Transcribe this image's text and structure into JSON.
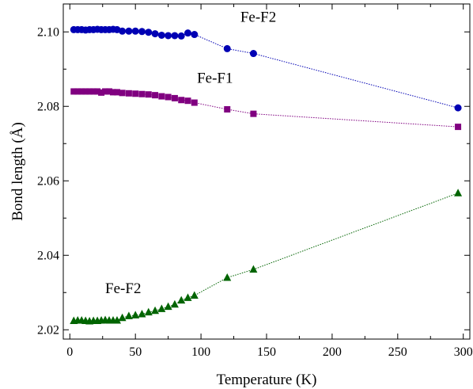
{
  "chart_data": {
    "type": "scatter",
    "xlabel": "Temperature (K)",
    "ylabel": "Bond length (Å)",
    "xlim": [
      -5,
      305
    ],
    "ylim": [
      2.0175,
      2.1075
    ],
    "xticks": [
      0,
      50,
      100,
      150,
      200,
      250,
      300
    ],
    "xtick_labels": [
      "0",
      "50",
      "100",
      "150",
      "200",
      "250",
      "300"
    ],
    "yticks": [
      2.02,
      2.04,
      2.06,
      2.08,
      2.1
    ],
    "ytick_labels": [
      "2.02",
      "2.04",
      "2.06",
      "2.08",
      "2.10"
    ],
    "grid": false,
    "legend": "none",
    "series": [
      {
        "name": "Fe-F2",
        "color": "#0000b4",
        "marker": "circle",
        "line": "dotted",
        "x": [
          3,
          6,
          9,
          12,
          15,
          18,
          21,
          24,
          27,
          30,
          33,
          36,
          40,
          45,
          50,
          55,
          60,
          65,
          70,
          75,
          80,
          85,
          90,
          95,
          120,
          140,
          296
        ],
        "y": [
          2.1006,
          2.1006,
          2.1006,
          2.1005,
          2.1006,
          2.1006,
          2.1007,
          2.1006,
          2.1006,
          2.1006,
          2.1007,
          2.1006,
          2.1002,
          2.1002,
          2.1002,
          2.1001,
          2.0999,
          2.0995,
          2.0991,
          2.099,
          2.099,
          2.0989,
          2.0997,
          2.0993,
          2.0955,
          2.0942,
          2.0796
        ]
      },
      {
        "name": "Fe-F1",
        "color": "#800080",
        "marker": "square",
        "line": "dotted",
        "x": [
          3,
          6,
          9,
          12,
          15,
          18,
          21,
          24,
          27,
          30,
          33,
          36,
          40,
          45,
          50,
          55,
          60,
          65,
          70,
          75,
          80,
          85,
          90,
          95,
          120,
          140,
          296
        ],
        "y": [
          2.084,
          2.084,
          2.084,
          2.084,
          2.084,
          2.084,
          2.084,
          2.0837,
          2.084,
          2.084,
          2.0838,
          2.0838,
          2.0836,
          2.0835,
          2.0834,
          2.0833,
          2.0832,
          2.083,
          2.0827,
          2.0825,
          2.0822,
          2.0817,
          2.0815,
          2.081,
          2.0792,
          2.078,
          2.0745
        ]
      },
      {
        "name": "Fe-F2",
        "color": "#006400",
        "marker": "triangle",
        "line": "dotted",
        "x": [
          3,
          6,
          9,
          12,
          15,
          18,
          21,
          24,
          27,
          30,
          33,
          36,
          40,
          45,
          50,
          55,
          60,
          65,
          70,
          75,
          80,
          85,
          90,
          95,
          120,
          140,
          296
        ],
        "y": [
          2.0224,
          2.0225,
          2.0225,
          2.0224,
          2.0223,
          2.0224,
          2.0224,
          2.0225,
          2.0226,
          2.0225,
          2.0225,
          2.0225,
          2.0232,
          2.0237,
          2.0239,
          2.0242,
          2.0247,
          2.0251,
          2.0256,
          2.0262,
          2.0268,
          2.0279,
          2.0286,
          2.0292,
          2.034,
          2.0362,
          2.0567
        ]
      }
    ],
    "annotations": [
      {
        "text": "Fe-F2",
        "x": 130,
        "y": 2.1027
      },
      {
        "text": "Fe-F1",
        "x": 97,
        "y": 2.0863
      },
      {
        "text": "Fe-F2",
        "x": 27,
        "y": 2.0298
      }
    ]
  }
}
